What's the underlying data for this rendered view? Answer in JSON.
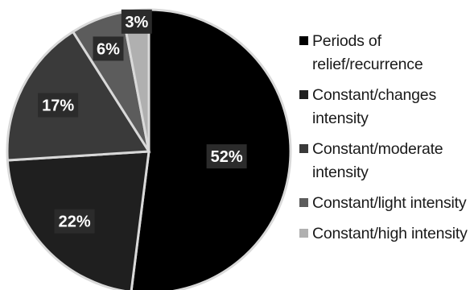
{
  "chart_data": {
    "type": "pie",
    "title": "",
    "categories": [
      "Periods of relief/recurrence",
      "Constant/changes intensity",
      "Constant/moderate intensity",
      "Constant/light intensity",
      "Constant/high intensity"
    ],
    "values": [
      52,
      22,
      17,
      6,
      3
    ],
    "data_labels": [
      "52%",
      "22%",
      "17%",
      "6%",
      "3%"
    ],
    "colors": [
      "#000000",
      "#1f1f1f",
      "#3a3a3a",
      "#5c5c5c",
      "#b0b0b0"
    ],
    "slice_border_color": "#d9d9d9",
    "start_angle": "12 o'clock",
    "direction": "clockwise",
    "legend_position": "right"
  },
  "legend": {
    "items": [
      {
        "label": "Periods of relief/recurrence",
        "color": "#000000"
      },
      {
        "label": "Constant/changes intensity",
        "color": "#1f1f1f"
      },
      {
        "label": "Constant/moderate intensity",
        "color": "#3a3a3a"
      },
      {
        "label": "Constant/light intensity",
        "color": "#5c5c5c"
      },
      {
        "label": "Constant/high intensity",
        "color": "#b0b0b0"
      }
    ]
  }
}
